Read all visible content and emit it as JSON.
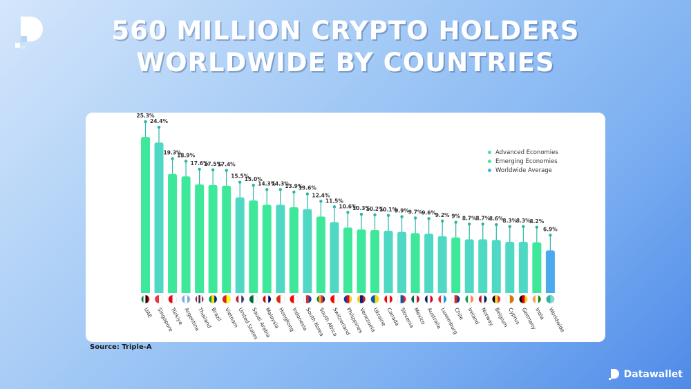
{
  "title_lines": [
    "560 MILLION CRYPTO HOLDERS",
    "WORLDWIDE BY COUNTRIES"
  ],
  "source": "Source: Triple-A",
  "brand": {
    "name": "Datawallet",
    "logo_icon": "datawallet-d-icon"
  },
  "colors": {
    "advanced": "#4fd8c4",
    "emerging": "#3ee89a",
    "average": "#4aa9ef",
    "stem": "#2bb5a3"
  },
  "chart_data": {
    "type": "bar",
    "title": "560 MILLION CRYPTO HOLDERS WORLDWIDE BY COUNTRIES",
    "xlabel": "",
    "ylabel": "",
    "ylim": [
      0,
      27
    ],
    "legend_position": "top-right",
    "grid": false,
    "legend": [
      "Advanced Economies",
      "Emerging Economies",
      "Worldwide Average"
    ],
    "categories": [
      "UAE",
      "Singapore",
      "Türkiye",
      "Argentina",
      "Thailand",
      "Brazil",
      "Vietnam",
      "United States",
      "Saudi Arabia",
      "Malaysia",
      "Hongkong",
      "Indonesia",
      "South Korea",
      "South Africa",
      "Switzerland",
      "Philippines",
      "Venezuela",
      "Ukraine",
      "Canada",
      "Slovenia",
      "Mexico",
      "Australia",
      "Luxemburg",
      "Chile",
      "Ireland",
      "Norway",
      "Belgium",
      "Cyprus",
      "Germany",
      "India",
      "Worldwide"
    ],
    "values": [
      25.3,
      24.4,
      19.3,
      18.9,
      17.6,
      17.5,
      17.4,
      15.5,
      15.0,
      14.3,
      14.3,
      13.9,
      13.6,
      12.4,
      11.5,
      10.6,
      10.3,
      10.2,
      10.1,
      9.9,
      9.7,
      9.6,
      9.2,
      9.0,
      8.7,
      8.7,
      8.6,
      8.3,
      8.3,
      8.2,
      6.9
    ],
    "labels": [
      "25.3%",
      "24.4%",
      "19.3%",
      "18.9%",
      "17.6%",
      "17.5%",
      "17.4%",
      "15.5%",
      "15.0%",
      "14.3%",
      "14.3%",
      "13.9%",
      "13.6%",
      "12.4%",
      "11.5%",
      "10.6%",
      "10.3%",
      "10.2%",
      "10.1%",
      "9.9%",
      "9.7%",
      "9.6%",
      "9.2%",
      "9%",
      "8.7%",
      "8.7%",
      "8.6%",
      "8.3%",
      "8.3%",
      "8.2%",
      "6.9%"
    ],
    "economy": [
      "emerging",
      "advanced",
      "emerging",
      "emerging",
      "emerging",
      "emerging",
      "emerging",
      "advanced",
      "emerging",
      "emerging",
      "advanced",
      "emerging",
      "advanced",
      "emerging",
      "advanced",
      "emerging",
      "emerging",
      "emerging",
      "advanced",
      "advanced",
      "emerging",
      "advanced",
      "advanced",
      "emerging",
      "advanced",
      "advanced",
      "advanced",
      "advanced",
      "advanced",
      "emerging",
      "average"
    ],
    "flags": [
      [
        "#00732f",
        "#ffffff",
        "#000000",
        "#ff0000"
      ],
      [
        "#ef3340",
        "#ffffff"
      ],
      [
        "#e30a17",
        "#ffffff"
      ],
      [
        "#74acdf",
        "#ffffff",
        "#74acdf"
      ],
      [
        "#a51931",
        "#f4f5f8",
        "#2d2a4a",
        "#f4f5f8",
        "#a51931"
      ],
      [
        "#009c3b",
        "#ffdf00",
        "#002776"
      ],
      [
        "#da251d",
        "#ffff00"
      ],
      [
        "#b22234",
        "#ffffff",
        "#3c3b6e"
      ],
      [
        "#006c35",
        "#ffffff"
      ],
      [
        "#cc0001",
        "#ffffff",
        "#010066"
      ],
      [
        "#de2910",
        "#ffffff"
      ],
      [
        "#ff0000",
        "#ffffff"
      ],
      [
        "#ffffff",
        "#cd2e3a",
        "#0047a0"
      ],
      [
        "#007a4d",
        "#ffb612",
        "#de3831",
        "#002395"
      ],
      [
        "#ff0000",
        "#ffffff"
      ],
      [
        "#0038a8",
        "#ce1126",
        "#fcd116"
      ],
      [
        "#ffcc00",
        "#00247d",
        "#cf142b"
      ],
      [
        "#0057b7",
        "#ffd700"
      ],
      [
        "#ff0000",
        "#ffffff",
        "#ff0000"
      ],
      [
        "#ffffff",
        "#005da4",
        "#ed1c24"
      ],
      [
        "#006847",
        "#ffffff",
        "#ce1126"
      ],
      [
        "#012169",
        "#ffffff",
        "#e4002b"
      ],
      [
        "#ed2939",
        "#ffffff",
        "#00a1de"
      ],
      [
        "#ffffff",
        "#d52b1e",
        "#0039a6"
      ],
      [
        "#169b62",
        "#ffffff",
        "#ff883e"
      ],
      [
        "#ba0c2f",
        "#ffffff",
        "#00205b"
      ],
      [
        "#000000",
        "#fdda24",
        "#ef3340"
      ],
      [
        "#ffffff",
        "#d57800"
      ],
      [
        "#000000",
        "#dd0000",
        "#ffce00"
      ],
      [
        "#ff9933",
        "#ffffff",
        "#138808"
      ],
      [
        "#2bb5a3",
        "#7fd9c9"
      ]
    ]
  }
}
